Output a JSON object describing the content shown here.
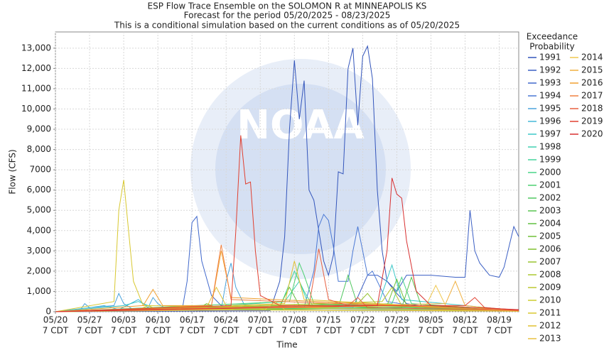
{
  "chart_data": {
    "type": "line",
    "title": "ESP Flow Trace Ensemble on the SOLOMON R at MINNEAPOLIS KS",
    "subtitle": "Forecast for the period 05/20/2025 - 08/23/2025",
    "note": "This is a conditional simulation based on the current conditions as of 05/20/2025",
    "watermark": "NOAA",
    "x_label": "Time",
    "y_label": "Flow (CFS)",
    "legend_title": [
      "Exceedance",
      "Probability"
    ],
    "grid": true,
    "xlim": [
      "05/20",
      "08/23"
    ],
    "xticks": [
      "05/20",
      "05/27",
      "06/03",
      "06/10",
      "06/17",
      "06/24",
      "07/01",
      "07/08",
      "07/15",
      "07/22",
      "07/29",
      "08/05",
      "08/12",
      "08/19"
    ],
    "xtick_sublabel": "7 CDT",
    "ylim": [
      0,
      13800
    ],
    "yticks": [
      0,
      {
        "value": 1000,
        "label": "1,000"
      },
      {
        "value": 2000,
        "label": "2,000"
      },
      {
        "value": 3000,
        "label": "3,000"
      },
      {
        "value": 4000,
        "label": "4,000"
      },
      {
        "value": 5000,
        "label": "5,000"
      },
      {
        "value": 6000,
        "label": "6,000"
      },
      7000,
      {
        "value": 8000,
        "label": "8,000"
      },
      {
        "value": 9000,
        "label": "9,000"
      },
      {
        "value": 10000,
        "label": "10,000"
      },
      {
        "value": 11000,
        "label": "11,000"
      },
      {
        "value": 12000,
        "label": "12,000"
      },
      {
        "value": 13000,
        "label": "13,000"
      }
    ],
    "series": [
      {
        "name": "1991",
        "color": "#3355bb",
        "x": [
          "05/20",
          "07/03",
          "07/05",
          "07/06",
          "07/07",
          "07/08",
          "07/09",
          "07/10",
          "07/11",
          "07/12",
          "07/13",
          "07/14",
          "07/15",
          "07/16",
          "07/17",
          "07/18",
          "07/19",
          "07/20",
          "07/21",
          "07/22",
          "07/23",
          "07/24",
          "07/25",
          "07/26",
          "07/27",
          "07/29",
          "07/31",
          "08/05",
          "08/23"
        ],
        "values": [
          0,
          50,
          1500,
          3700,
          9000,
          12400,
          9500,
          11400,
          6000,
          5500,
          4000,
          2500,
          1800,
          2800,
          6900,
          6800,
          12000,
          13000,
          9200,
          12600,
          13100,
          11500,
          6000,
          3000,
          1500,
          900,
          400,
          200,
          100
        ]
      },
      {
        "name": "1992",
        "color": "#3b5fc4",
        "x": [
          "05/20",
          "07/20",
          "07/23",
          "07/25",
          "07/27",
          "07/29",
          "07/31",
          "08/05",
          "08/10",
          "08/12",
          "08/13",
          "08/14",
          "08/15",
          "08/17",
          "08/19",
          "08/20",
          "08/22",
          "08/23"
        ],
        "values": [
          0,
          200,
          1800,
          1800,
          1500,
          1000,
          1800,
          1800,
          1700,
          1700,
          5000,
          3000,
          2400,
          1800,
          1700,
          2200,
          4200,
          3700
        ]
      },
      {
        "name": "1993",
        "color": "#4169cc",
        "x": [
          "05/20",
          "06/15",
          "06/16",
          "06/17",
          "06/18",
          "06/19",
          "06/21",
          "06/23",
          "07/01",
          "08/23"
        ],
        "values": [
          0,
          100,
          1500,
          4400,
          4700,
          2500,
          800,
          300,
          100,
          50
        ]
      },
      {
        "name": "1994",
        "color": "#4a78d4",
        "x": [
          "05/20",
          "07/10",
          "07/12",
          "07/13",
          "07/14",
          "07/15",
          "07/16",
          "07/17",
          "07/19",
          "07/20",
          "07/21",
          "07/22",
          "07/23",
          "07/24",
          "07/25",
          "07/27",
          "08/05",
          "08/23"
        ],
        "values": [
          0,
          200,
          2000,
          4200,
          4800,
          4500,
          3200,
          1500,
          1500,
          3000,
          4200,
          3000,
          1800,
          2000,
          1500,
          500,
          150,
          100
        ]
      },
      {
        "name": "1995",
        "color": "#4aa3dc",
        "x": [
          "05/20",
          "05/25",
          "05/26",
          "05/27",
          "06/01",
          "06/02",
          "06/03",
          "06/05",
          "06/08",
          "06/09",
          "06/10",
          "06/12",
          "06/23",
          "06/24",
          "06/25",
          "06/26",
          "06/28",
          "08/23"
        ],
        "values": [
          0,
          50,
          400,
          200,
          300,
          900,
          400,
          100,
          200,
          700,
          400,
          100,
          100,
          1500,
          2400,
          1200,
          200,
          50
        ]
      },
      {
        "name": "1996",
        "color": "#44b8d8",
        "x": [
          "05/20",
          "05/27",
          "05/30",
          "06/02",
          "06/06",
          "06/08",
          "06/20",
          "07/08",
          "08/23"
        ],
        "values": [
          0,
          200,
          300,
          100,
          600,
          200,
          100,
          100,
          50
        ]
      },
      {
        "name": "1997",
        "color": "#3cc8c8",
        "x": [
          "05/20",
          "06/03",
          "06/06",
          "06/10",
          "07/25",
          "07/28",
          "07/30",
          "08/23"
        ],
        "values": [
          0,
          300,
          500,
          100,
          200,
          2300,
          600,
          50
        ]
      },
      {
        "name": "1998",
        "color": "#40d0b0",
        "x": [
          "05/20",
          "06/20",
          "06/24",
          "07/06",
          "07/09",
          "07/11",
          "08/23"
        ],
        "values": [
          0,
          100,
          300,
          500,
          1500,
          300,
          50
        ]
      },
      {
        "name": "1999",
        "color": "#44d49a",
        "x": [
          "05/20",
          "07/05",
          "07/08",
          "07/10",
          "07/12",
          "08/23"
        ],
        "values": [
          0,
          200,
          2000,
          1000,
          200,
          50
        ]
      },
      {
        "name": "2000",
        "color": "#48d488",
        "x": [
          "05/20",
          "06/20",
          "06/25",
          "07/28",
          "07/30",
          "08/01",
          "08/23"
        ],
        "values": [
          0,
          100,
          200,
          400,
          1700,
          400,
          50
        ]
      },
      {
        "name": "2001",
        "color": "#4cd070",
        "x": [
          "05/20",
          "07/07",
          "07/09",
          "07/10",
          "07/12",
          "08/23"
        ],
        "values": [
          0,
          500,
          2400,
          1800,
          400,
          50
        ]
      },
      {
        "name": "2002",
        "color": "#50c860",
        "x": [
          "05/20",
          "07/17",
          "07/19",
          "07/21",
          "08/23"
        ],
        "values": [
          0,
          200,
          1800,
          300,
          50
        ]
      },
      {
        "name": "2003",
        "color": "#58c450",
        "x": [
          "05/20",
          "07/30",
          "08/01",
          "08/03",
          "08/23"
        ],
        "values": [
          0,
          200,
          1700,
          300,
          50
        ]
      },
      {
        "name": "2004",
        "color": "#60c040",
        "x": [
          "05/20",
          "07/05",
          "07/07",
          "07/09",
          "08/23"
        ],
        "values": [
          0,
          300,
          1200,
          300,
          40
        ]
      },
      {
        "name": "2005",
        "color": "#70c038",
        "x": [
          "05/20",
          "07/27",
          "07/29",
          "07/31",
          "08/23"
        ],
        "values": [
          0,
          300,
          1600,
          300,
          40
        ]
      },
      {
        "name": "2006",
        "color": "#80c030",
        "x": [
          "05/20",
          "06/18",
          "06/20",
          "06/23",
          "08/23"
        ],
        "values": [
          0,
          100,
          400,
          100,
          30
        ]
      },
      {
        "name": "2007",
        "color": "#98c430",
        "x": [
          "05/20",
          "07/21",
          "07/23",
          "07/25",
          "08/23"
        ],
        "values": [
          0,
          400,
          900,
          300,
          30
        ]
      },
      {
        "name": "2008",
        "color": "#aac830",
        "x": [
          "05/20",
          "06/25",
          "06/28",
          "07/02",
          "08/23"
        ],
        "values": [
          0,
          100,
          300,
          100,
          30
        ]
      },
      {
        "name": "2009",
        "color": "#bcc830",
        "x": [
          "05/20",
          "07/26",
          "07/28",
          "07/30",
          "08/23"
        ],
        "values": [
          0,
          500,
          1200,
          300,
          30
        ]
      },
      {
        "name": "2010",
        "color": "#cccc30",
        "x": [
          "05/20",
          "06/06",
          "06/08",
          "06/10",
          "08/23"
        ],
        "values": [
          0,
          100,
          300,
          100,
          30
        ]
      },
      {
        "name": "2011",
        "color": "#d8c830",
        "x": [
          "05/20",
          "06/01",
          "06/02",
          "06/03",
          "06/04",
          "06/05",
          "06/07",
          "08/23"
        ],
        "values": [
          0,
          500,
          5000,
          6500,
          4000,
          1500,
          300,
          30
        ]
      },
      {
        "name": "2012",
        "color": "#e0c030",
        "x": [
          "05/20",
          "06/20",
          "06/22",
          "06/24",
          "07/06",
          "07/08",
          "07/10",
          "08/23"
        ],
        "values": [
          0,
          200,
          1200,
          300,
          400,
          2500,
          600,
          20
        ]
      },
      {
        "name": "2013",
        "color": "#e8c040",
        "x": [
          "05/20",
          "07/02",
          "07/04",
          "07/06",
          "08/23"
        ],
        "values": [
          0,
          100,
          500,
          100,
          20
        ]
      },
      {
        "name": "2014",
        "color": "#f0c850",
        "x": [
          "05/20",
          "08/04",
          "08/06",
          "08/08",
          "08/23"
        ],
        "values": [
          0,
          300,
          1300,
          300,
          30
        ]
      },
      {
        "name": "2015",
        "color": "#f0b040",
        "x": [
          "05/20",
          "08/08",
          "08/10",
          "08/12",
          "08/23"
        ],
        "values": [
          0,
          400,
          1500,
          300,
          40
        ]
      },
      {
        "name": "2016",
        "color": "#f0a030",
        "x": [
          "05/20",
          "06/07",
          "06/09",
          "06/11",
          "06/21",
          "06/23",
          "06/25",
          "08/23"
        ],
        "values": [
          0,
          300,
          1100,
          300,
          300,
          3000,
          700,
          40
        ]
      },
      {
        "name": "2017",
        "color": "#f08040",
        "x": [
          "05/20",
          "06/21",
          "06/23",
          "06/25",
          "08/23"
        ],
        "values": [
          0,
          300,
          3300,
          600,
          60
        ]
      },
      {
        "name": "2018",
        "color": "#e86040",
        "x": [
          "05/20",
          "07/11",
          "07/13",
          "07/15",
          "07/19",
          "07/21",
          "07/23",
          "08/23"
        ],
        "values": [
          0,
          300,
          3100,
          600,
          300,
          700,
          200,
          60
        ]
      },
      {
        "name": "2019",
        "color": "#e04030",
        "x": [
          "05/20",
          "06/25",
          "06/26",
          "06/27",
          "06/28",
          "06/29",
          "06/30",
          "07/01",
          "07/05",
          "08/12",
          "08/14",
          "08/16",
          "08/23"
        ],
        "values": [
          0,
          300,
          4000,
          8700,
          6300,
          6400,
          3000,
          800,
          300,
          300,
          700,
          200,
          80
        ]
      },
      {
        "name": "2020",
        "color": "#d83030",
        "x": [
          "05/20",
          "07/25",
          "07/27",
          "07/28",
          "07/29",
          "07/30",
          "07/31",
          "08/02",
          "08/05",
          "08/23"
        ],
        "values": [
          0,
          300,
          3000,
          6600,
          5800,
          5600,
          3500,
          1000,
          300,
          100
        ]
      }
    ]
  }
}
